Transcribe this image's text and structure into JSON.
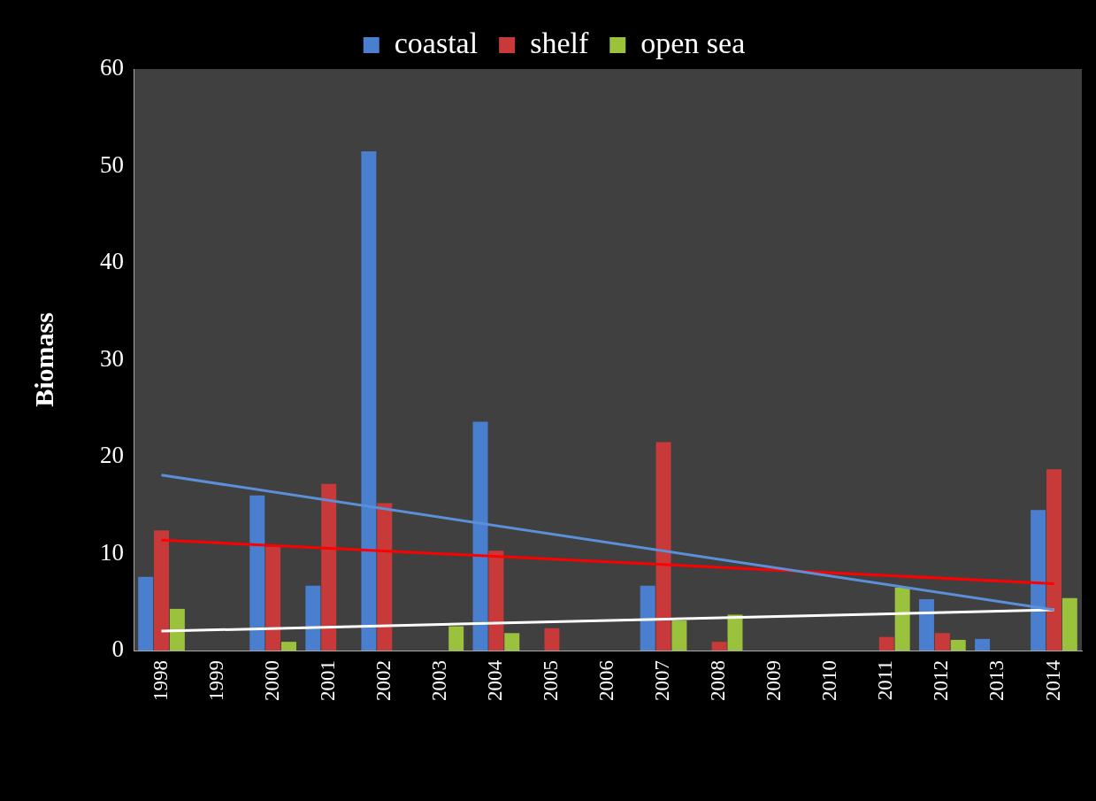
{
  "chart_data": {
    "type": "bar",
    "ylabel": "Biomass",
    "categories": [
      "1998",
      "1999",
      "2000",
      "2001",
      "2002",
      "2003",
      "2004",
      "2005",
      "2006",
      "2007",
      "2008",
      "2009",
      "2010",
      "2011",
      "2012",
      "2013",
      "2014"
    ],
    "series": [
      {
        "name": "coastal",
        "color": "#4a7fd0",
        "values": [
          7.6,
          null,
          16,
          6.7,
          51.5,
          0,
          23.6,
          null,
          null,
          6.7,
          null,
          null,
          null,
          0,
          5.3,
          1.2,
          14.5
        ]
      },
      {
        "name": "shelf",
        "color": "#c83a3a",
        "values": [
          12.4,
          null,
          10.7,
          17.2,
          15.2,
          null,
          10.3,
          2.3,
          null,
          21.5,
          0.9,
          null,
          null,
          1.4,
          1.8,
          null,
          18.7
        ]
      },
      {
        "name": "open sea",
        "color": "#9bc23c",
        "values": [
          4.3,
          null,
          0.9,
          null,
          null,
          2.5,
          1.8,
          null,
          null,
          3.1,
          3.7,
          null,
          null,
          6.5,
          1.1,
          null,
          5.4
        ]
      },
      {
        "type": "line",
        "color": "#5b8fd8",
        "values": [
          18.1,
          null,
          null,
          null,
          null,
          null,
          null,
          null,
          null,
          null,
          null,
          null,
          null,
          null,
          null,
          null,
          4.2
        ]
      },
      {
        "type": "line",
        "color": "#ff0000",
        "values": [
          11.4,
          null,
          null,
          null,
          null,
          null,
          null,
          null,
          null,
          null,
          null,
          null,
          null,
          null,
          null,
          null,
          6.9
        ]
      },
      {
        "type": "line",
        "color": "#ffffff",
        "values": [
          2.0,
          null,
          null,
          null,
          null,
          null,
          null,
          null,
          null,
          null,
          null,
          null,
          null,
          null,
          null,
          null,
          4.2
        ]
      }
    ],
    "ylim": [
      0,
      60
    ],
    "yticks": [
      0,
      10,
      20,
      30,
      40,
      50,
      60
    ],
    "grid": false,
    "legend": "top",
    "marker": "none"
  }
}
